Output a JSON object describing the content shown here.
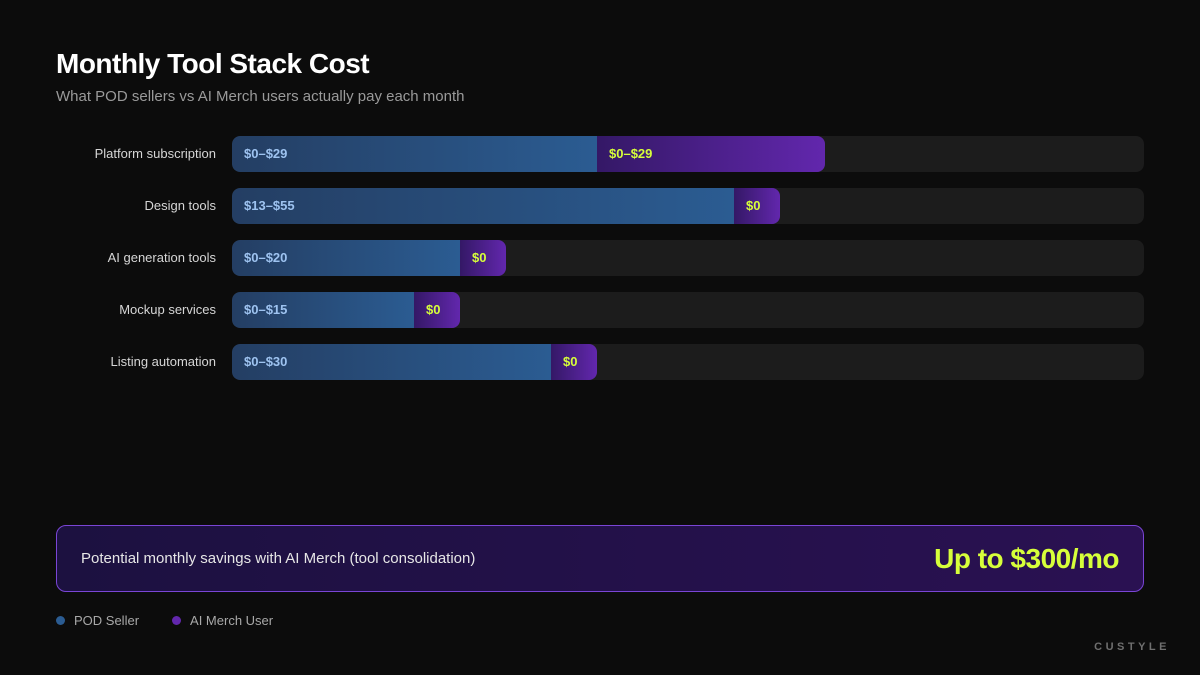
{
  "header": {
    "title": "Monthly Tool Stack Cost",
    "subtitle": "What POD sellers vs AI Merch users actually pay each month"
  },
  "chart_data": {
    "type": "bar",
    "orientation": "horizontal",
    "stacked": true,
    "categories": [
      "Platform subscription",
      "Design tools",
      "AI generation tools",
      "Mockup services",
      "Listing automation"
    ],
    "series": [
      {
        "name": "POD Seller",
        "color": "#2b5c92",
        "label_color": "#9ec3f0",
        "values": [
          40,
          55,
          25,
          20,
          35
        ],
        "labels": [
          "$0–$29",
          "$13–$55",
          "$0–$20",
          "$0–$15",
          "$0–$30"
        ]
      },
      {
        "name": "AI Merch User",
        "color": "#6227ad",
        "label_color": "#d7ff3a",
        "values": [
          25,
          5,
          5,
          5,
          5
        ],
        "labels": [
          "$0–$29",
          "$0",
          "$0",
          "$0",
          "$0"
        ]
      }
    ],
    "xlim": [
      0,
      100
    ],
    "grid": false,
    "legend_position": "bottom-left"
  },
  "savings": {
    "label": "Potential monthly savings with AI Merch (tool consolidation)",
    "value": "Up to $300/mo"
  },
  "legend": [
    {
      "label": "POD Seller",
      "color": "#2b5c92"
    },
    {
      "label": "AI Merch User",
      "color": "#6227ad"
    }
  ],
  "brand": "CUSTYLE"
}
